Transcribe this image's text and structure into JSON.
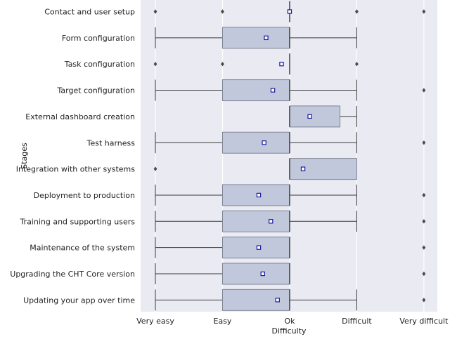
{
  "chart_data": {
    "type": "box",
    "orientation": "horizontal",
    "title": "",
    "xlabel": "Difficulty",
    "ylabel": "Stages",
    "x_tick_labels": [
      "Very easy",
      "Easy",
      "Ok",
      "Difficult",
      "Very difficult"
    ],
    "x_tick_values": [
      1,
      2,
      3,
      4,
      5
    ],
    "xlim": [
      0.78,
      5.2
    ],
    "grid": true,
    "colors": {
      "background": "#eaeaf2",
      "grid": "#ffffff",
      "box_fill": "#c1c8db",
      "box_edge": "#7f8593",
      "whisker": "#3a3a3a",
      "mean_marker": "#1a1a9c",
      "outlier": "#4a4a4a"
    },
    "categories": [
      {
        "label": "Contact and user setup",
        "whislo": 3,
        "q1": 3,
        "med": 3,
        "q3": 3,
        "whishi": 3,
        "mean": 3.0,
        "fliers": [
          1,
          2,
          4,
          5
        ]
      },
      {
        "label": "Form configuration",
        "whislo": 1,
        "q1": 2,
        "med": 3,
        "q3": 3,
        "whishi": 4,
        "mean": 2.65,
        "fliers": []
      },
      {
        "label": "Task configuration",
        "whislo": 3,
        "q1": 3,
        "med": 3,
        "q3": 3,
        "whishi": 3,
        "mean": 2.88,
        "fliers": [
          1,
          2,
          4
        ]
      },
      {
        "label": "Target configuration",
        "whislo": 1,
        "q1": 2,
        "med": 3,
        "q3": 3,
        "whishi": 4,
        "mean": 2.75,
        "fliers": [
          5
        ]
      },
      {
        "label": "External dashboard creation",
        "whislo": 3,
        "q1": 3,
        "med": 3,
        "q3": 3.75,
        "whishi": 4,
        "mean": 3.3,
        "fliers": []
      },
      {
        "label": "Test harness",
        "whislo": 1,
        "q1": 2,
        "med": 3,
        "q3": 3,
        "whishi": 4,
        "mean": 2.62,
        "fliers": [
          5
        ]
      },
      {
        "label": "Integration with other systems",
        "whislo": 3,
        "q1": 3,
        "med": 3,
        "q3": 4,
        "whishi": 4,
        "mean": 3.2,
        "fliers": [
          1
        ]
      },
      {
        "label": "Deployment to production",
        "whislo": 1,
        "q1": 2,
        "med": 3,
        "q3": 3,
        "whishi": 4,
        "mean": 2.54,
        "fliers": [
          5
        ]
      },
      {
        "label": "Training and supporting users",
        "whislo": 1,
        "q1": 2,
        "med": 3,
        "q3": 3,
        "whishi": 4,
        "mean": 2.72,
        "fliers": [
          5
        ]
      },
      {
        "label": "Maintenance of the system",
        "whislo": 1,
        "q1": 2,
        "med": 3,
        "q3": 3,
        "whishi": 3,
        "mean": 2.54,
        "fliers": [
          5
        ]
      },
      {
        "label": "Upgrading the CHT Core version",
        "whislo": 1,
        "q1": 2,
        "med": 3,
        "q3": 3,
        "whishi": 3,
        "mean": 2.6,
        "fliers": [
          5
        ]
      },
      {
        "label": "Updating your app over time",
        "whislo": 1,
        "q1": 2,
        "med": 3,
        "q3": 3,
        "whishi": 4,
        "mean": 2.82,
        "fliers": [
          5
        ]
      }
    ]
  }
}
